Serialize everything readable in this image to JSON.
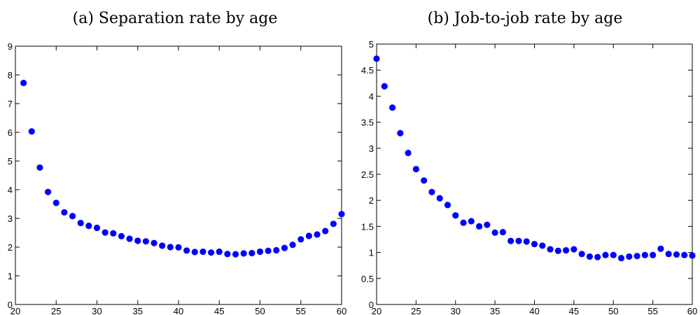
{
  "chart_data": [
    {
      "type": "scatter",
      "title": "(a) Separation rate by age",
      "xlim": [
        20,
        60
      ],
      "ylim": [
        0,
        9
      ],
      "xticks": [
        20,
        25,
        30,
        35,
        40,
        45,
        50,
        55,
        60
      ],
      "yticks": [
        0,
        1,
        2,
        3,
        4,
        5,
        6,
        7,
        8,
        9
      ],
      "marker_color": "#0000ff",
      "grid": false,
      "series": [
        {
          "x": [
            21,
            22,
            23,
            24,
            25,
            26,
            27,
            28,
            29,
            30,
            31,
            32,
            33,
            34,
            35,
            36,
            37,
            38,
            39,
            40,
            41,
            42,
            43,
            44,
            45,
            46,
            47,
            48,
            49,
            50,
            51,
            52,
            53,
            54,
            55,
            56,
            57,
            58,
            59,
            60
          ],
          "y": [
            7.72,
            6.03,
            4.77,
            3.92,
            3.54,
            3.21,
            3.08,
            2.84,
            2.74,
            2.67,
            2.51,
            2.48,
            2.38,
            2.29,
            2.22,
            2.2,
            2.14,
            2.05,
            2.0,
            1.99,
            1.88,
            1.83,
            1.84,
            1.81,
            1.84,
            1.76,
            1.75,
            1.78,
            1.79,
            1.84,
            1.87,
            1.89,
            1.97,
            2.08,
            2.27,
            2.39,
            2.44,
            2.56,
            2.81,
            3.15
          ]
        }
      ]
    },
    {
      "type": "scatter",
      "title": "(b) Job-to-job rate by age",
      "xlim": [
        20,
        60
      ],
      "ylim": [
        0,
        5
      ],
      "xticks": [
        20,
        25,
        30,
        35,
        40,
        45,
        50,
        55,
        60
      ],
      "yticks": [
        0,
        0.5,
        1,
        1.5,
        2,
        2.5,
        3,
        3.5,
        4,
        4.5,
        5
      ],
      "marker_color": "#0000ff",
      "grid": false,
      "series": [
        {
          "x": [
            20,
            21,
            22,
            23,
            24,
            25,
            26,
            27,
            28,
            29,
            30,
            31,
            32,
            33,
            34,
            35,
            36,
            37,
            38,
            39,
            40,
            41,
            42,
            43,
            44,
            45,
            46,
            47,
            48,
            49,
            50,
            51,
            52,
            53,
            54,
            55,
            56,
            57,
            58,
            59,
            60
          ],
          "y": [
            4.72,
            4.19,
            3.78,
            3.29,
            2.91,
            2.6,
            2.38,
            2.16,
            2.04,
            1.91,
            1.71,
            1.57,
            1.6,
            1.5,
            1.53,
            1.38,
            1.39,
            1.22,
            1.22,
            1.21,
            1.16,
            1.13,
            1.06,
            1.03,
            1.04,
            1.06,
            0.97,
            0.92,
            0.91,
            0.95,
            0.95,
            0.89,
            0.92,
            0.93,
            0.95,
            0.95,
            1.07,
            0.97,
            0.96,
            0.95,
            0.94
          ]
        }
      ]
    }
  ]
}
